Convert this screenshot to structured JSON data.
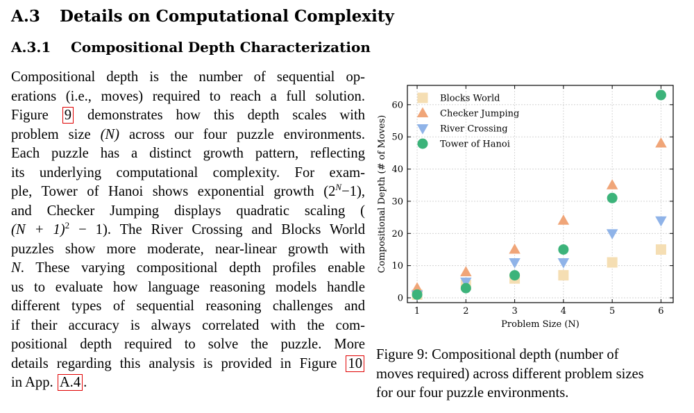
{
  "section": {
    "number": "A.3",
    "title": "Details on Computational Complexity"
  },
  "subsection": {
    "number": "A.3.1",
    "title": "Compositional Depth Characterization"
  },
  "paragraph": {
    "lines": [
      "Compositional depth is the number of sequential op-",
      "erations (i.e., moves) required to reach a full solution.",
      "demonstrates how this depth scales with",
      "problem size",
      "across our four puzzle environments.",
      "Each puzzle has a distinct growth pattern, reflecting",
      "its underlying computational complexity. For exam-",
      "ple, Tower of Hanoi shows exponential growth",
      "and Checker Jumping displays quadratic scaling (",
      ". The River Crossing and Blocks World",
      "puzzles show more moderate, near-linear growth with",
      ". These varying compositional depth profiles enable",
      "us to evaluate how language reasoning models handle",
      "different types of sequential reasoning challenges and",
      "if their accuracy is always correlated with the com-",
      "positional depth required to solve the puzzle. More",
      "details regarding this analysis is provided in Figure",
      "in App."
    ],
    "figure_word": "Figure",
    "fig9_ref": "9",
    "fig10_ref": "10",
    "app_ref": "A.4",
    "period": ".",
    "N_paren": "(N)",
    "hanoi_formula_base": "(2",
    "hanoi_formula_sup": "N",
    "hanoi_formula_tail": "−1),",
    "checker_formula": "(N + 1)",
    "checker_formula_sup": "2",
    "checker_formula_tail": " − 1)",
    "N_var": "N"
  },
  "caption": {
    "lines": [
      "Figure 9:  Compositional depth (number of",
      "moves required) across different problem sizes",
      "for our four puzzle environments."
    ]
  },
  "chart_data": {
    "type": "scatter",
    "xlabel": "Problem Size (N)",
    "ylabel": "Compositional Depth (# of Moves)",
    "xlim": [
      0.8,
      6.25
    ],
    "ylim": [
      -1.5,
      66
    ],
    "xticks": [
      1,
      2,
      3,
      4,
      5,
      6
    ],
    "yticks": [
      0,
      10,
      20,
      30,
      40,
      50,
      60
    ],
    "grid": true,
    "legend_position": "top-left",
    "series": [
      {
        "name": "Blocks World",
        "marker": "square",
        "color": "#f5deb3",
        "x": [
          1,
          2,
          3,
          4,
          5,
          6
        ],
        "y": [
          1,
          4,
          6,
          7,
          11,
          15
        ]
      },
      {
        "name": "Checker Jumping",
        "marker": "triangle-up",
        "color": "#f0a578",
        "x": [
          1,
          2,
          3,
          4,
          5,
          6
        ],
        "y": [
          3,
          8,
          15,
          24,
          35,
          48
        ]
      },
      {
        "name": "River Crossing",
        "marker": "triangle-down",
        "color": "#8fb3e8",
        "x": [
          1,
          2,
          3,
          4,
          5,
          6
        ],
        "y": [
          1,
          5,
          11,
          11,
          20,
          24
        ]
      },
      {
        "name": "Tower of Hanoi",
        "marker": "circle",
        "color": "#3cb37a",
        "x": [
          1,
          2,
          3,
          4,
          5,
          6
        ],
        "y": [
          1,
          3,
          7,
          15,
          31,
          63
        ]
      }
    ]
  }
}
